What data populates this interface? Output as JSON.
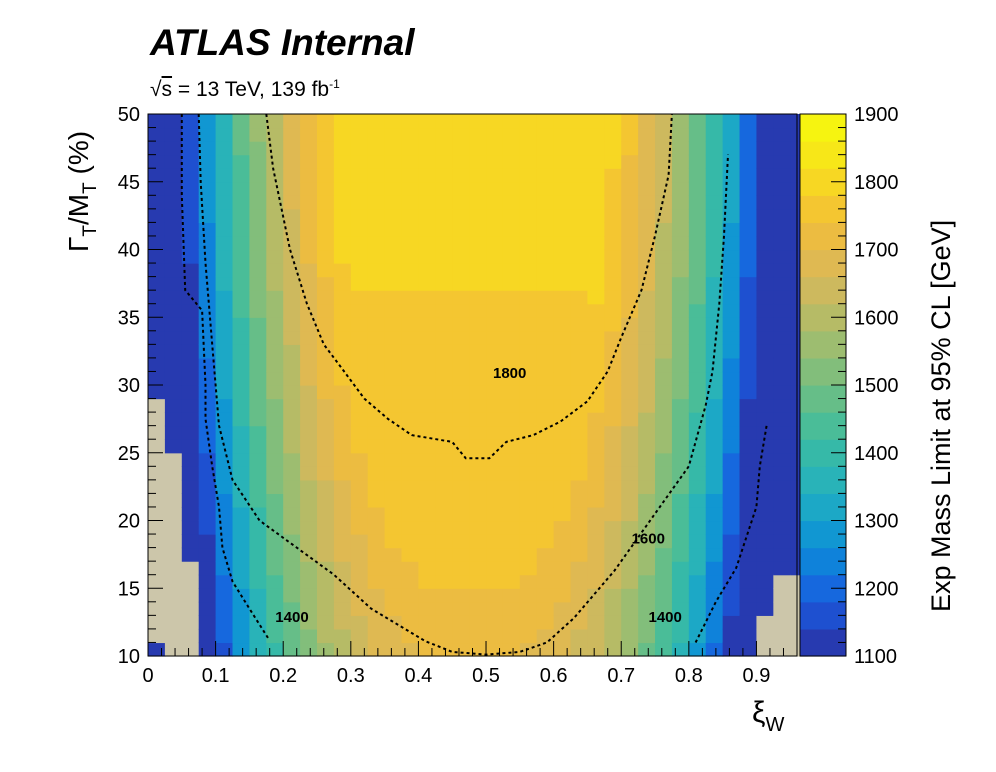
{
  "header": {
    "experiment": "ATLAS",
    "status": "Internal",
    "sqrt_s": "s",
    "energy_text": " = 13 TeV, 139 fb",
    "lumi_exponent": "-1"
  },
  "chart_data": {
    "type": "heatmap",
    "xlabel": "ξ",
    "xlabel_sub": "W",
    "ylabel": "Γ",
    "ylabel_sub1": "T",
    "ylabel_mid": "/M",
    "ylabel_sub2": "T",
    "ylabel_unit": " (%)",
    "zlabel": "Exp Mass Limit at 95% CL [GeV]",
    "xlim": [
      0,
      0.96
    ],
    "ylim": [
      10,
      50
    ],
    "zlim": [
      1100,
      1900
    ],
    "x_ticks": [
      "0",
      "0.1",
      "0.2",
      "0.3",
      "0.4",
      "0.5",
      "0.6",
      "0.7",
      "0.8",
      "0.9"
    ],
    "y_ticks": [
      "10",
      "15",
      "20",
      "25",
      "30",
      "35",
      "40",
      "45",
      "50"
    ],
    "z_ticks": [
      "1100",
      "1200",
      "1300",
      "1400",
      "1500",
      "1600",
      "1700",
      "1800",
      "1900"
    ],
    "x_bin_width": 0.025,
    "y_bin_width": 1,
    "excluded_color": "#ccc6aa",
    "colormap_stops": [
      "#2b2fa0",
      "#1a5be0",
      "#0b8fd8",
      "#22b0c0",
      "#3cbca0",
      "#74bf80",
      "#aabc6a",
      "#d8b85a",
      "#f2bd38",
      "#f8e01c",
      "#f5fa0c"
    ],
    "contours": [
      {
        "label": "1800",
        "level": 1800,
        "points": [
          [
            0.175,
            50
          ],
          [
            0.185,
            46
          ],
          [
            0.21,
            40
          ],
          [
            0.235,
            36
          ],
          [
            0.26,
            33
          ],
          [
            0.29,
            31
          ],
          [
            0.32,
            29
          ],
          [
            0.355,
            27.5
          ],
          [
            0.39,
            26.3
          ],
          [
            0.45,
            25.8
          ],
          [
            0.47,
            24.6
          ],
          [
            0.505,
            24.6
          ],
          [
            0.53,
            25.8
          ],
          [
            0.57,
            26.3
          ],
          [
            0.61,
            27.3
          ],
          [
            0.65,
            28.8
          ],
          [
            0.68,
            31
          ],
          [
            0.7,
            33.5
          ],
          [
            0.73,
            37
          ],
          [
            0.75,
            41
          ],
          [
            0.77,
            45.5
          ],
          [
            0.775,
            50
          ]
        ]
      },
      {
        "label": "1600",
        "level": 1600,
        "points": [
          [
            0.075,
            50
          ],
          [
            0.078,
            45
          ],
          [
            0.085,
            39
          ],
          [
            0.095,
            33
          ],
          [
            0.105,
            27
          ],
          [
            0.125,
            23
          ],
          [
            0.165,
            20
          ],
          [
            0.22,
            18
          ],
          [
            0.275,
            16
          ],
          [
            0.33,
            13.5
          ],
          [
            0.38,
            12
          ],
          [
            0.41,
            11.1
          ],
          [
            0.45,
            10.3
          ],
          [
            0.5,
            10.1
          ],
          [
            0.55,
            10.3
          ],
          [
            0.59,
            11
          ],
          [
            0.63,
            12.8
          ],
          [
            0.69,
            16.3
          ],
          [
            0.75,
            20.5
          ],
          [
            0.8,
            24
          ],
          [
            0.825,
            28.5
          ],
          [
            0.835,
            31
          ],
          [
            0.845,
            36
          ],
          [
            0.852,
            41
          ],
          [
            0.858,
            47
          ]
        ]
      },
      {
        "label": "1400",
        "level": 1400,
        "points": [
          [
            0.05,
            50
          ],
          [
            0.05,
            44
          ],
          [
            0.055,
            37
          ],
          [
            0.08,
            35.5
          ],
          [
            0.085,
            30
          ],
          [
            0.085,
            27.5
          ],
          [
            0.095,
            24
          ],
          [
            0.105,
            21
          ],
          [
            0.11,
            18
          ],
          [
            0.125,
            15.5
          ],
          [
            0.15,
            13.5
          ],
          [
            0.178,
            11.3
          ]
        ]
      },
      {
        "label": "1400",
        "level": 1400,
        "points": [
          [
            0.81,
            11
          ],
          [
            0.84,
            14
          ],
          [
            0.87,
            16.5
          ],
          [
            0.9,
            21
          ],
          [
            0.905,
            24
          ],
          [
            0.915,
            27
          ]
        ]
      }
    ],
    "contour_labels": [
      {
        "text": "1800",
        "x": 0.535,
        "y": 30.5
      },
      {
        "text": "1600",
        "x": 0.74,
        "y": 18.3
      },
      {
        "text": "1400",
        "x": 0.213,
        "y": 12.5
      },
      {
        "text": "1400",
        "x": 0.765,
        "y": 12.5
      }
    ]
  }
}
